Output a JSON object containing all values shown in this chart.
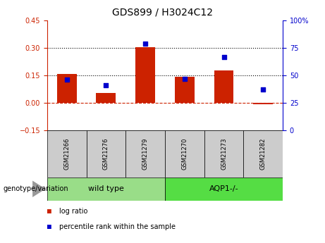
{
  "title": "GDS899 / H3024C12",
  "samples": [
    "GSM21266",
    "GSM21276",
    "GSM21279",
    "GSM21270",
    "GSM21273",
    "GSM21282"
  ],
  "log_ratio": [
    0.157,
    0.055,
    0.305,
    0.143,
    0.178,
    -0.01
  ],
  "percentile_rank": [
    46,
    41,
    79,
    47,
    67,
    37
  ],
  "bar_color": "#cc2200",
  "dot_color": "#0000cc",
  "left_ylim": [
    -0.15,
    0.45
  ],
  "right_ylim": [
    0,
    100
  ],
  "left_yticks": [
    -0.15,
    0.0,
    0.15,
    0.3,
    0.45
  ],
  "right_yticks": [
    0,
    25,
    50,
    75,
    100
  ],
  "hline_y": [
    0.15,
    0.3
  ],
  "zero_line_y": 0.0,
  "group1_label": "wild type",
  "group2_label": "AQP1-/-",
  "group1_color": "#99dd88",
  "group2_color": "#55dd44",
  "genotype_label": "genotype/variation",
  "legend_log_ratio": "log ratio",
  "legend_percentile": "percentile rank within the sample",
  "title_fontsize": 10,
  "tick_fontsize": 7,
  "label_fontsize": 7,
  "sample_label_fontsize": 6,
  "group_label_fontsize": 8
}
